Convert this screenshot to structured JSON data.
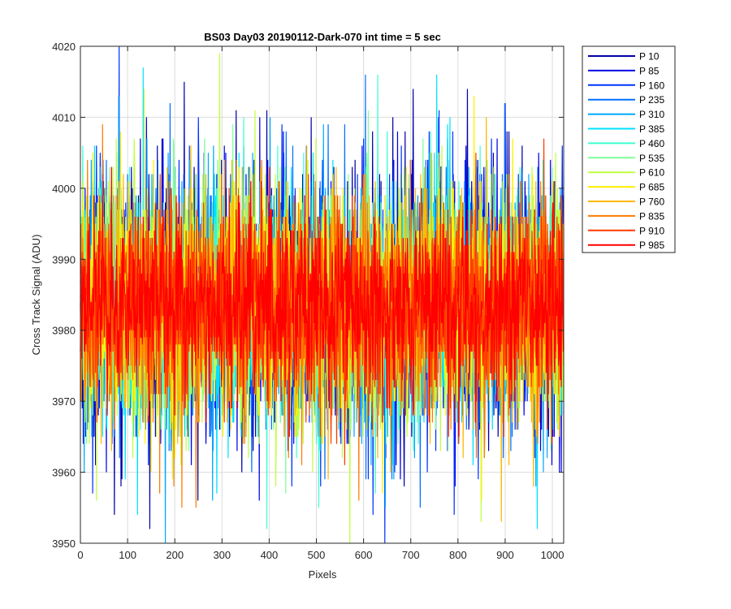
{
  "chart_data": {
    "type": "line",
    "title": "BS03 Day03 20190112-Dark-070 int time = 5 sec",
    "xlabel": "Pixels",
    "ylabel": "Cross Track Signal (ADU)",
    "xlim": [
      0,
      1024
    ],
    "ylim": [
      3950,
      4020
    ],
    "xticks": [
      0,
      100,
      200,
      300,
      400,
      500,
      600,
      700,
      800,
      900,
      1000
    ],
    "yticks": [
      3950,
      3960,
      3970,
      3980,
      3990,
      4000,
      4010,
      4020
    ],
    "grid": true,
    "legend_location": "outside-top-right",
    "n_points": 1024,
    "series": [
      {
        "name": "P 10",
        "color": "#0000AA",
        "mean": 3983.5,
        "std": 9.0,
        "extremes": [
          [
            72,
            3954
          ],
          [
            220,
            4015
          ],
          [
            330,
            4011
          ],
          [
            395,
            4011
          ],
          [
            705,
            4014
          ],
          [
            820,
            4014
          ]
        ]
      },
      {
        "name": "P 85",
        "color": "#0000E6",
        "mean": 3983.5,
        "std": 9.0,
        "extremes": [
          [
            140,
            4010
          ],
          [
            380,
            4010
          ],
          [
            900,
            4012
          ],
          [
            1015,
            3960
          ]
        ]
      },
      {
        "name": "P 160",
        "color": "#0033FF",
        "mean": 3983.5,
        "std": 8.5,
        "extremes": [
          [
            250,
            4010
          ],
          [
            620,
            3954
          ],
          [
            760,
            4011
          ]
        ]
      },
      {
        "name": "P 235",
        "color": "#0070FF",
        "mean": 3983.5,
        "std": 8.5,
        "extremes": [
          [
            560,
            4009
          ],
          [
            720,
            3955
          ]
        ]
      },
      {
        "name": "P 310",
        "color": "#00A8FF",
        "mean": 3983.5,
        "std": 8.5,
        "extremes": [
          [
            180,
            3950
          ],
          [
            280,
            3956
          ]
        ]
      },
      {
        "name": "P 385",
        "color": "#00E0FF",
        "mean": 3983.5,
        "std": 8.5,
        "extremes": [
          [
            755,
            4016
          ],
          [
            30,
            4006
          ]
        ]
      },
      {
        "name": "P 460",
        "color": "#3DFFD0",
        "mean": 3983.5,
        "std": 8.0,
        "extremes": [
          [
            505,
            3955
          ],
          [
            650,
            4008
          ]
        ]
      },
      {
        "name": "P 535",
        "color": "#7DFF9A",
        "mean": 3983.5,
        "std": 8.0,
        "extremes": [
          [
            435,
            3957
          ],
          [
            610,
            4011
          ]
        ]
      },
      {
        "name": "P 610",
        "color": "#C0FF40",
        "mean": 3983.5,
        "std": 8.5,
        "extremes": [
          [
            135,
            4014
          ],
          [
            295,
            4019
          ],
          [
            370,
            4011
          ]
        ]
      },
      {
        "name": "P 685",
        "color": "#FFF000",
        "mean": 3983.5,
        "std": 8.0,
        "extremes": [
          [
            150,
            3960
          ],
          [
            640,
            3957
          ]
        ]
      },
      {
        "name": "P 760",
        "color": "#FFB800",
        "mean": 3983.5,
        "std": 8.0,
        "extremes": [
          [
            892,
            3953
          ],
          [
            960,
            3958
          ]
        ]
      },
      {
        "name": "P 835",
        "color": "#FF7A00",
        "mean": 3983.5,
        "std": 7.5,
        "extremes": [
          [
            245,
            3955
          ],
          [
            590,
            3956
          ]
        ]
      },
      {
        "name": "P 910",
        "color": "#FF3A00",
        "mean": 3983.5,
        "std": 7.0,
        "extremes": [
          [
            560,
            3961
          ]
        ]
      },
      {
        "name": "P 985",
        "color": "#FF0000",
        "mean": 3983.5,
        "std": 6.5,
        "extremes": [
          [
            990,
            3966
          ]
        ]
      }
    ]
  }
}
